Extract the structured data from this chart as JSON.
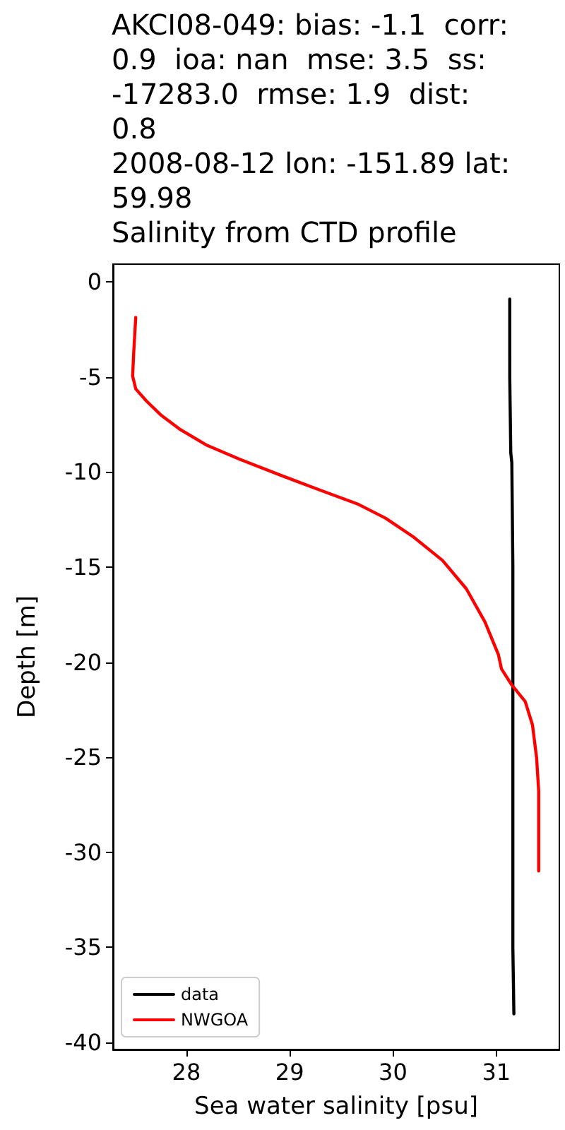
{
  "chart_data": {
    "type": "line",
    "title": "AKCI08-049: bias: -1.1  corr:\n0.9  ioa: nan  mse: 3.5  ss:\n-17283.0  rmse: 1.9  dist:\n0.8\n2008-08-12 lon: -151.89 lat:\n59.98\nSalinity from CTD profile",
    "xlabel": "Sea water salinity [psu]",
    "ylabel": "Depth [m]",
    "xlim": [
      27.29,
      31.61
    ],
    "xticks": [
      28,
      29,
      30,
      31
    ],
    "ylim": [
      -40.37,
      0.94
    ],
    "yticks": [
      0,
      -5,
      -10,
      -15,
      -20,
      -25,
      -30,
      -35,
      -40
    ],
    "grid": false,
    "legend": "bottom left",
    "series": [
      {
        "name": "data",
        "color": "#000000",
        "x": [
          31.13,
          31.13,
          31.14,
          31.15,
          31.16,
          31.16,
          31.16,
          31.16,
          31.16,
          31.17
        ],
        "values": [
          -0.9,
          -5,
          -9,
          -9.5,
          -15,
          -20,
          -25,
          -30,
          -35,
          -38.5
        ]
      },
      {
        "name": "NWGOA",
        "color": "#ff0000",
        "x": [
          27.51,
          27.49,
          27.48,
          27.51,
          27.61,
          27.75,
          27.93,
          28.2,
          28.52,
          28.93,
          29.29,
          29.66,
          29.93,
          30.2,
          30.48,
          30.71,
          30.89,
          31.02,
          31.05,
          31.15,
          31.28,
          31.35,
          31.39,
          31.41,
          31.41
        ],
        "values": [
          -1.86,
          -3.76,
          -4.95,
          -5.62,
          -6.24,
          -6.98,
          -7.72,
          -8.59,
          -9.33,
          -10.2,
          -10.94,
          -11.68,
          -12.43,
          -13.42,
          -14.65,
          -16.14,
          -17.88,
          -19.6,
          -20.35,
          -21.2,
          -22.07,
          -23.3,
          -25.04,
          -26.77,
          -30.98
        ]
      }
    ]
  }
}
